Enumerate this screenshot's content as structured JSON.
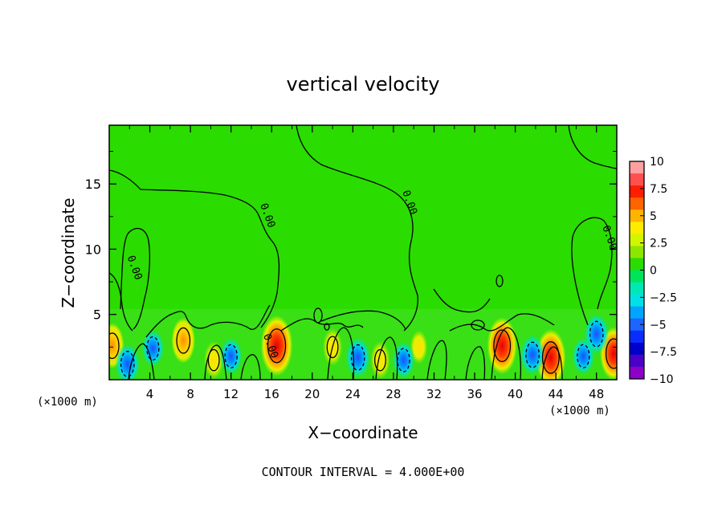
{
  "chart_data": {
    "type": "heatmap",
    "title": "vertical velocity",
    "xlabel": "X−coordinate",
    "ylabel": "Z−coordinate",
    "x_unit_left": "(×1000 m)",
    "x_unit_right": "(×1000 m)",
    "footer": "CONTOUR INTERVAL = 4.000E+00",
    "xlim": [
      0,
      50
    ],
    "ylim": [
      0,
      19.5
    ],
    "xticks": [
      4,
      8,
      12,
      16,
      20,
      24,
      28,
      32,
      36,
      40,
      44,
      48
    ],
    "xtick_labels": [
      "4",
      "8",
      "12",
      "16",
      "20",
      "24",
      "28",
      "32",
      "36",
      "40",
      "44",
      "48"
    ],
    "yticks": [
      5,
      10,
      15
    ],
    "ytick_labels": [
      "5",
      "10",
      "15"
    ],
    "colorbar": {
      "vmin": -10,
      "vmax": 10,
      "levels": [
        10,
        7.5,
        5,
        2.5,
        0,
        -2.5,
        -5,
        -7.5,
        -10
      ],
      "labels": [
        "10",
        "7.5",
        "5",
        "2.5",
        "0",
        "−2.5",
        "−5",
        "−7.5",
        "−10"
      ],
      "colors": [
        "#ffa0a0",
        "#ff5050",
        "#ff1e00",
        "#ff6400",
        "#ffb400",
        "#ffeb00",
        "#d2f500",
        "#8ce600",
        "#2bdc00",
        "#00e45a",
        "#00e8b4",
        "#00e1e6",
        "#00a5ff",
        "#1e64ff",
        "#0a2dff",
        "#0000cd",
        "#4b00c8",
        "#8c00c8"
      ]
    },
    "contour_labels": [
      {
        "text": "0.00",
        "x": 2.2,
        "z": 8.5
      },
      {
        "text": "0.00",
        "x": 15.3,
        "z": 12.5
      },
      {
        "text": "0.00",
        "x": 29.3,
        "z": 13.5
      },
      {
        "text": "0.00",
        "x": 49.0,
        "z": 10.8
      },
      {
        "text": "0.00",
        "x": 15.6,
        "z": 2.5
      }
    ],
    "updrafts": [
      {
        "x": 0.3,
        "z": 2.6,
        "w": 6
      },
      {
        "x": 7.3,
        "z": 3.0,
        "w": 6
      },
      {
        "x": 10.3,
        "z": 1.5,
        "w": 4
      },
      {
        "x": 16.5,
        "z": 2.6,
        "w": 10
      },
      {
        "x": 22.0,
        "z": 2.5,
        "w": 4
      },
      {
        "x": 26.7,
        "z": 1.5,
        "w": 4
      },
      {
        "x": 30.5,
        "z": 2.5,
        "w": 3
      },
      {
        "x": 38.7,
        "z": 2.6,
        "w": 9
      },
      {
        "x": 43.5,
        "z": 1.7,
        "w": 9
      },
      {
        "x": 49.7,
        "z": 2.0,
        "w": 8
      }
    ],
    "downdrafts": [
      {
        "x": 1.8,
        "z": 1.2,
        "w": -6
      },
      {
        "x": 4.3,
        "z": 2.4,
        "w": -5
      },
      {
        "x": 12.0,
        "z": 1.8,
        "w": -5
      },
      {
        "x": 24.5,
        "z": 1.7,
        "w": -6
      },
      {
        "x": 29.0,
        "z": 1.5,
        "w": -5
      },
      {
        "x": 41.7,
        "z": 1.9,
        "w": -6
      },
      {
        "x": 46.7,
        "z": 1.8,
        "w": -5
      },
      {
        "x": 48.0,
        "z": 3.5,
        "w": -6
      }
    ],
    "grid": false,
    "legend": "colorbar-right"
  }
}
